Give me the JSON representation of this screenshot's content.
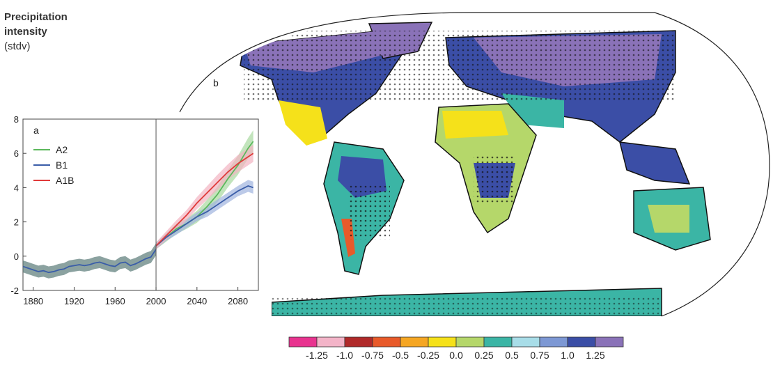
{
  "ylabel": {
    "line1": "Precipitation",
    "line2": "intensity",
    "line3": "(stdv)"
  },
  "chart_data": [
    {
      "panel": "a",
      "type": "line",
      "xlim": [
        1870,
        2100
      ],
      "ylim": [
        -2,
        8
      ],
      "xticks": [
        1880,
        1920,
        1960,
        2000,
        2040,
        2080
      ],
      "yticks": [
        -2,
        0,
        2,
        4,
        6,
        8
      ],
      "vline_x": 2000,
      "grid": false,
      "legend_position": "top-left",
      "historical": {
        "color": "#3a5da8",
        "band_color": "#5a7a78",
        "x": [
          1870,
          1875,
          1880,
          1885,
          1890,
          1895,
          1900,
          1905,
          1910,
          1915,
          1920,
          1925,
          1930,
          1935,
          1940,
          1945,
          1950,
          1955,
          1960,
          1965,
          1970,
          1975,
          1980,
          1985,
          1990,
          1995,
          2000
        ],
        "y": [
          -0.6,
          -0.7,
          -0.8,
          -0.9,
          -0.85,
          -0.95,
          -0.9,
          -0.8,
          -0.75,
          -0.6,
          -0.55,
          -0.5,
          -0.55,
          -0.5,
          -0.4,
          -0.35,
          -0.45,
          -0.55,
          -0.6,
          -0.4,
          -0.35,
          -0.55,
          -0.45,
          -0.3,
          -0.15,
          -0.05,
          0.4
        ],
        "band_half_width": 0.35
      },
      "series": [
        {
          "name": "A2",
          "color": "#5cb85c",
          "band_color": "#a8d9a0",
          "x": [
            2000,
            2010,
            2020,
            2030,
            2040,
            2050,
            2060,
            2070,
            2080,
            2090,
            2095
          ],
          "y": [
            0.6,
            1.1,
            1.6,
            1.9,
            2.3,
            2.9,
            3.6,
            4.5,
            5.3,
            6.3,
            6.7
          ],
          "band_half_width": [
            0.2,
            0.25,
            0.3,
            0.3,
            0.35,
            0.4,
            0.45,
            0.5,
            0.55,
            0.6,
            0.65
          ]
        },
        {
          "name": "B1",
          "color": "#3a5da8",
          "band_color": "#9fb3de",
          "x": [
            2000,
            2010,
            2020,
            2030,
            2040,
            2050,
            2060,
            2070,
            2080,
            2090,
            2095
          ],
          "y": [
            0.6,
            1.1,
            1.5,
            1.9,
            2.3,
            2.6,
            3.0,
            3.4,
            3.8,
            4.1,
            4.0
          ],
          "band_half_width": [
            0.2,
            0.2,
            0.25,
            0.25,
            0.25,
            0.3,
            0.3,
            0.3,
            0.3,
            0.35,
            0.35
          ]
        },
        {
          "name": "A1B",
          "color": "#e03a3a",
          "band_color": "#f2b3c2",
          "x": [
            2000,
            2010,
            2020,
            2030,
            2040,
            2050,
            2060,
            2070,
            2080,
            2090,
            2095
          ],
          "y": [
            0.6,
            1.2,
            1.8,
            2.4,
            3.1,
            3.7,
            4.3,
            4.9,
            5.4,
            5.8,
            6.0
          ],
          "band_half_width": [
            0.2,
            0.25,
            0.3,
            0.3,
            0.35,
            0.4,
            0.45,
            0.45,
            0.5,
            0.5,
            0.5
          ]
        }
      ]
    },
    {
      "panel": "b",
      "type": "heatmap",
      "colorbar": {
        "labels": [
          "-1.25",
          "-1.0",
          "-0.75",
          "-0.5",
          "-0.25",
          "0.0",
          "0.25",
          "0.5",
          "0.75",
          "1.0",
          "1.25"
        ],
        "colors": [
          "#e8338f",
          "#f3b4c8",
          "#b02a2a",
          "#e85a2a",
          "#f5a623",
          "#f5e11a",
          "#b5d76a",
          "#3bb5a5",
          "#a8dde8",
          "#7d98d4",
          "#3b4ea6",
          "#8a72b8"
        ]
      },
      "palette": {
        "ocean": "#ffffff",
        "land_outline": "#1a1a1a",
        "stipple": "#111111"
      }
    }
  ]
}
